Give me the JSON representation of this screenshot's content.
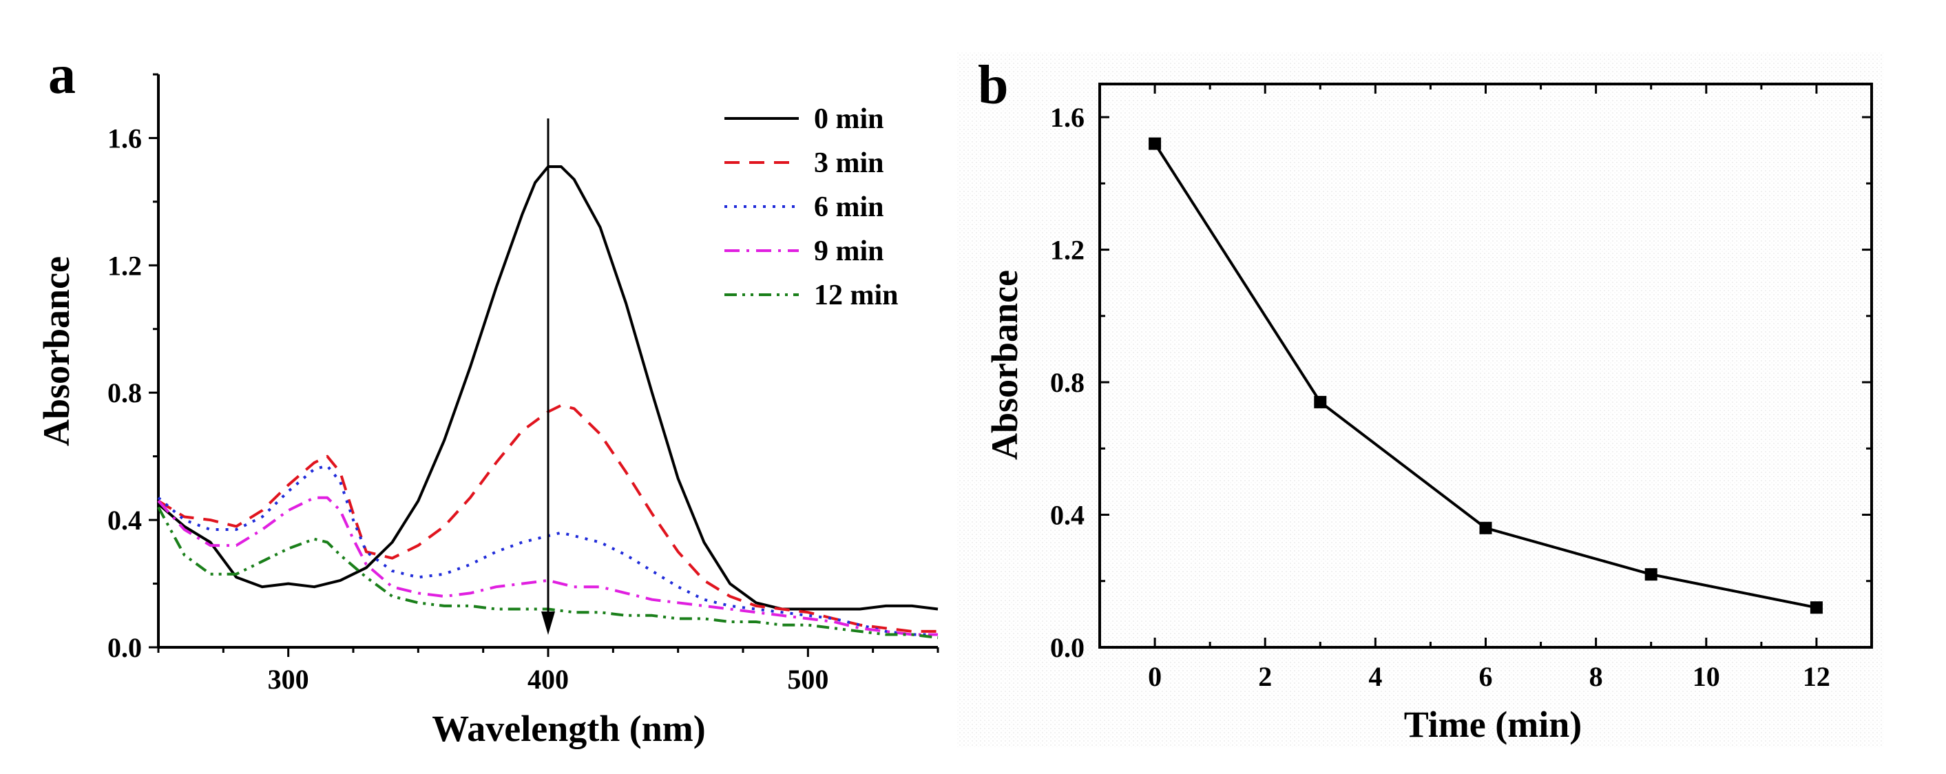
{
  "chart_data": [
    {
      "panel": "a",
      "type": "line",
      "xlabel": "Wavelength (nm)",
      "ylabel": "Absorbance",
      "xlim": [
        250,
        550
      ],
      "ylim": [
        0.0,
        1.8
      ],
      "xticks": [
        300,
        400,
        500
      ],
      "yticks": [
        "0.0",
        "0.4",
        "0.8",
        "1.2",
        "1.6"
      ],
      "legend_position": "top-right",
      "annotation": "downward arrow at 400 nm marking absorbance decrease over time",
      "series": [
        {
          "name": "0 min",
          "color": "#000000",
          "dash": "solid",
          "points": [
            [
              250,
              0.45
            ],
            [
              260,
              0.38
            ],
            [
              270,
              0.33
            ],
            [
              280,
              0.22
            ],
            [
              290,
              0.19
            ],
            [
              300,
              0.2
            ],
            [
              310,
              0.19
            ],
            [
              320,
              0.21
            ],
            [
              330,
              0.25
            ],
            [
              340,
              0.33
            ],
            [
              350,
              0.46
            ],
            [
              360,
              0.65
            ],
            [
              370,
              0.88
            ],
            [
              380,
              1.13
            ],
            [
              390,
              1.36
            ],
            [
              395,
              1.46
            ],
            [
              400,
              1.51
            ],
            [
              405,
              1.51
            ],
            [
              410,
              1.47
            ],
            [
              420,
              1.32
            ],
            [
              430,
              1.08
            ],
            [
              440,
              0.8
            ],
            [
              450,
              0.53
            ],
            [
              460,
              0.33
            ],
            [
              470,
              0.2
            ],
            [
              480,
              0.14
            ],
            [
              490,
              0.12
            ],
            [
              500,
              0.12
            ],
            [
              510,
              0.12
            ],
            [
              520,
              0.12
            ],
            [
              530,
              0.13
            ],
            [
              540,
              0.13
            ],
            [
              550,
              0.12
            ]
          ]
        },
        {
          "name": "3 min",
          "color": "#e0141e",
          "dash": "dashed",
          "points": [
            [
              250,
              0.46
            ],
            [
              260,
              0.41
            ],
            [
              270,
              0.4
            ],
            [
              280,
              0.38
            ],
            [
              290,
              0.43
            ],
            [
              300,
              0.51
            ],
            [
              310,
              0.58
            ],
            [
              315,
              0.6
            ],
            [
              320,
              0.55
            ],
            [
              325,
              0.42
            ],
            [
              330,
              0.3
            ],
            [
              340,
              0.28
            ],
            [
              350,
              0.32
            ],
            [
              360,
              0.38
            ],
            [
              370,
              0.47
            ],
            [
              380,
              0.58
            ],
            [
              390,
              0.68
            ],
            [
              400,
              0.74
            ],
            [
              405,
              0.76
            ],
            [
              410,
              0.75
            ],
            [
              420,
              0.67
            ],
            [
              430,
              0.55
            ],
            [
              440,
              0.42
            ],
            [
              450,
              0.3
            ],
            [
              460,
              0.21
            ],
            [
              470,
              0.16
            ],
            [
              480,
              0.13
            ],
            [
              490,
              0.12
            ],
            [
              500,
              0.11
            ],
            [
              510,
              0.09
            ],
            [
              520,
              0.07
            ],
            [
              530,
              0.06
            ],
            [
              540,
              0.05
            ],
            [
              550,
              0.05
            ]
          ]
        },
        {
          "name": "6 min",
          "color": "#1f2bd9",
          "dash": "dotted",
          "points": [
            [
              250,
              0.47
            ],
            [
              260,
              0.4
            ],
            [
              270,
              0.37
            ],
            [
              280,
              0.37
            ],
            [
              290,
              0.41
            ],
            [
              300,
              0.49
            ],
            [
              310,
              0.56
            ],
            [
              315,
              0.57
            ],
            [
              320,
              0.52
            ],
            [
              325,
              0.4
            ],
            [
              330,
              0.3
            ],
            [
              340,
              0.24
            ],
            [
              350,
              0.22
            ],
            [
              360,
              0.23
            ],
            [
              370,
              0.26
            ],
            [
              380,
              0.3
            ],
            [
              390,
              0.33
            ],
            [
              400,
              0.35
            ],
            [
              405,
              0.36
            ],
            [
              410,
              0.35
            ],
            [
              420,
              0.33
            ],
            [
              430,
              0.29
            ],
            [
              440,
              0.24
            ],
            [
              450,
              0.19
            ],
            [
              460,
              0.15
            ],
            [
              470,
              0.13
            ],
            [
              480,
              0.12
            ],
            [
              490,
              0.11
            ],
            [
              500,
              0.1
            ],
            [
              510,
              0.09
            ],
            [
              520,
              0.07
            ],
            [
              530,
              0.05
            ],
            [
              540,
              0.04
            ],
            [
              550,
              0.04
            ]
          ]
        },
        {
          "name": "9 min",
          "color": "#e01fe0",
          "dash": "dashdot",
          "points": [
            [
              250,
              0.46
            ],
            [
              260,
              0.37
            ],
            [
              270,
              0.32
            ],
            [
              280,
              0.32
            ],
            [
              290,
              0.37
            ],
            [
              300,
              0.43
            ],
            [
              310,
              0.47
            ],
            [
              315,
              0.47
            ],
            [
              320,
              0.43
            ],
            [
              325,
              0.34
            ],
            [
              330,
              0.26
            ],
            [
              340,
              0.19
            ],
            [
              350,
              0.17
            ],
            [
              360,
              0.16
            ],
            [
              370,
              0.17
            ],
            [
              380,
              0.19
            ],
            [
              390,
              0.2
            ],
            [
              400,
              0.21
            ],
            [
              405,
              0.2
            ],
            [
              410,
              0.19
            ],
            [
              420,
              0.19
            ],
            [
              430,
              0.17
            ],
            [
              440,
              0.15
            ],
            [
              450,
              0.14
            ],
            [
              460,
              0.13
            ],
            [
              470,
              0.12
            ],
            [
              480,
              0.11
            ],
            [
              490,
              0.1
            ],
            [
              500,
              0.09
            ],
            [
              510,
              0.08
            ],
            [
              520,
              0.06
            ],
            [
              530,
              0.05
            ],
            [
              540,
              0.04
            ],
            [
              550,
              0.04
            ]
          ]
        },
        {
          "name": "12 min",
          "color": "#1a7f1a",
          "dash": "dashdotdot",
          "points": [
            [
              250,
              0.44
            ],
            [
              260,
              0.29
            ],
            [
              270,
              0.23
            ],
            [
              280,
              0.23
            ],
            [
              290,
              0.27
            ],
            [
              300,
              0.31
            ],
            [
              310,
              0.34
            ],
            [
              315,
              0.33
            ],
            [
              320,
              0.29
            ],
            [
              330,
              0.22
            ],
            [
              340,
              0.16
            ],
            [
              350,
              0.14
            ],
            [
              360,
              0.13
            ],
            [
              370,
              0.13
            ],
            [
              380,
              0.12
            ],
            [
              390,
              0.12
            ],
            [
              400,
              0.12
            ],
            [
              410,
              0.11
            ],
            [
              420,
              0.11
            ],
            [
              430,
              0.1
            ],
            [
              440,
              0.1
            ],
            [
              450,
              0.09
            ],
            [
              460,
              0.09
            ],
            [
              470,
              0.08
            ],
            [
              480,
              0.08
            ],
            [
              490,
              0.07
            ],
            [
              500,
              0.07
            ],
            [
              510,
              0.06
            ],
            [
              520,
              0.05
            ],
            [
              530,
              0.04
            ],
            [
              540,
              0.04
            ],
            [
              550,
              0.03
            ]
          ]
        }
      ]
    },
    {
      "panel": "b",
      "type": "line",
      "xlabel": "Time (min)",
      "ylabel": "Absorbance",
      "xlim": [
        -1,
        13
      ],
      "ylim": [
        0.0,
        1.7
      ],
      "xticks": [
        "0",
        "2",
        "4",
        "6",
        "8",
        "10",
        "12"
      ],
      "yticks": [
        "0.0",
        "0.4",
        "0.8",
        "1.2",
        "1.6"
      ],
      "marker": "square",
      "color": "#000000",
      "x": [
        0,
        3,
        6,
        9,
        12
      ],
      "y": [
        1.52,
        0.74,
        0.36,
        0.22,
        0.12
      ]
    }
  ]
}
